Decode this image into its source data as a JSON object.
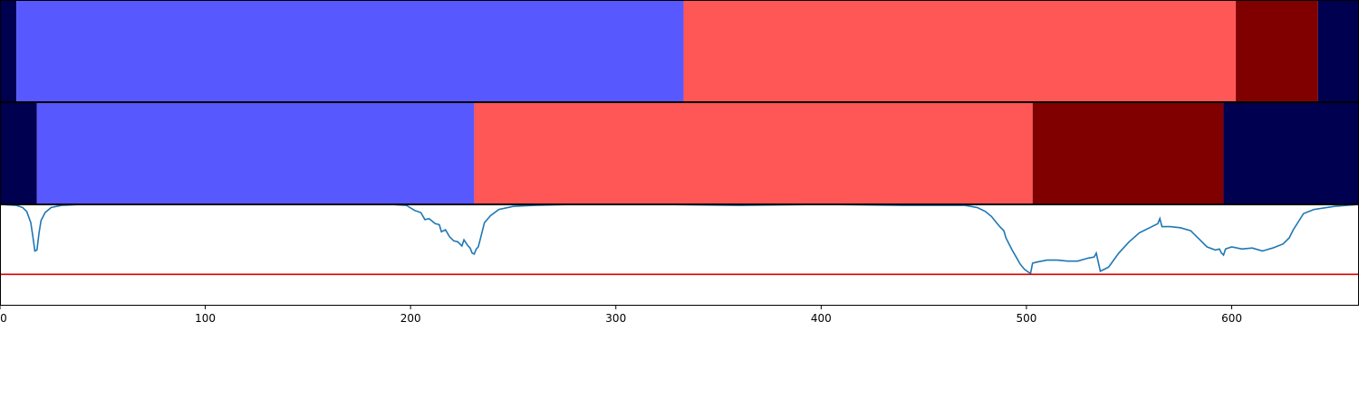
{
  "chart_data": {
    "type": "area",
    "description_free": true,
    "xlim": [
      0,
      662
    ],
    "x_ticks": [
      0,
      100,
      200,
      300,
      400,
      500,
      600
    ],
    "colors": {
      "class_0": "#000050",
      "class_1": "#5858ff",
      "class_2": "#ff5656",
      "class_3": "#800000",
      "signal": "#1f77b4",
      "threshold": "#dd0000",
      "axis": "#000000"
    },
    "segment_bars": [
      {
        "segments": [
          {
            "start": 0,
            "end": 8,
            "class": "class_0"
          },
          {
            "start": 8,
            "end": 333,
            "class": "class_1"
          },
          {
            "start": 333,
            "end": 602,
            "class": "class_2"
          },
          {
            "start": 602,
            "end": 642,
            "class": "class_3"
          },
          {
            "start": 642,
            "end": 662,
            "class": "class_0"
          }
        ]
      },
      {
        "segments": [
          {
            "start": 0,
            "end": 18,
            "class": "class_0"
          },
          {
            "start": 18,
            "end": 231,
            "class": "class_1"
          },
          {
            "start": 231,
            "end": 503,
            "class": "class_2"
          },
          {
            "start": 503,
            "end": 596,
            "class": "class_3"
          },
          {
            "start": 596,
            "end": 662,
            "class": "class_0"
          }
        ]
      }
    ],
    "line_panel": {
      "ylim": [
        0,
        1
      ],
      "threshold": 0.31,
      "series": {
        "x": [
          0,
          8,
          11,
          13,
          15,
          16,
          17,
          18,
          19,
          20,
          22,
          25,
          30,
          40,
          60,
          100,
          150,
          190,
          198,
          202,
          205,
          207,
          209,
          212,
          214,
          215,
          217,
          219,
          221,
          223,
          225,
          226,
          228,
          229,
          230,
          231,
          232,
          233,
          234,
          236,
          239,
          243,
          250,
          260,
          280,
          320,
          360,
          400,
          440,
          470,
          476,
          480,
          483,
          485,
          487,
          489,
          490,
          493,
          495,
          497,
          499,
          501,
          502,
          503,
          505,
          510,
          515,
          520,
          525,
          530,
          533,
          534,
          536,
          540,
          545,
          550,
          555,
          560,
          564,
          565,
          566,
          570,
          575,
          580,
          584,
          588,
          592,
          594,
          595,
          596,
          597,
          600,
          605,
          610,
          615,
          620,
          625,
          628,
          630,
          635,
          640,
          650,
          662
        ],
        "y": [
          1.0,
          0.99,
          0.97,
          0.93,
          0.82,
          0.68,
          0.54,
          0.55,
          0.72,
          0.84,
          0.92,
          0.97,
          0.99,
          1.0,
          1.0,
          1.0,
          1.0,
          1.0,
          0.99,
          0.94,
          0.92,
          0.85,
          0.86,
          0.81,
          0.8,
          0.73,
          0.75,
          0.68,
          0.64,
          0.63,
          0.59,
          0.65,
          0.59,
          0.57,
          0.52,
          0.51,
          0.56,
          0.58,
          0.66,
          0.82,
          0.89,
          0.95,
          0.98,
          0.99,
          1.0,
          1.0,
          0.99,
          1.0,
          0.99,
          0.99,
          0.97,
          0.93,
          0.88,
          0.83,
          0.78,
          0.74,
          0.67,
          0.55,
          0.48,
          0.41,
          0.36,
          0.33,
          0.32,
          0.42,
          0.43,
          0.45,
          0.45,
          0.44,
          0.44,
          0.47,
          0.48,
          0.52,
          0.34,
          0.38,
          0.52,
          0.63,
          0.72,
          0.77,
          0.81,
          0.86,
          0.78,
          0.78,
          0.77,
          0.74,
          0.66,
          0.58,
          0.55,
          0.56,
          0.52,
          0.5,
          0.56,
          0.58,
          0.56,
          0.57,
          0.54,
          0.57,
          0.61,
          0.67,
          0.75,
          0.91,
          0.95,
          0.98,
          1.0
        ]
      }
    }
  }
}
